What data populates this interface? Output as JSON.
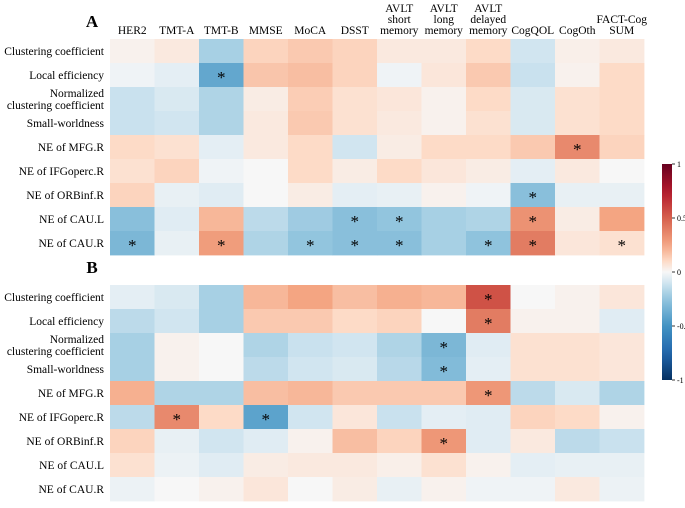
{
  "chart_data": {
    "type": "heatmap",
    "columns": [
      "HER2",
      "TMT-A",
      "TMT-B",
      "MMSE",
      "MoCA",
      "DSST",
      "AVLT short memory",
      "AVLT long memory",
      "AVLT delayed memory",
      "CogQOL",
      "CogOth",
      "FACT-Cog SUM"
    ],
    "column_labels": [
      [
        "HER2"
      ],
      [
        "TMT-A"
      ],
      [
        "TMT-B"
      ],
      [
        "MMSE"
      ],
      [
        "MoCA"
      ],
      [
        "DSST"
      ],
      [
        "AVLT",
        "short",
        "memory"
      ],
      [
        "AVLT",
        "long",
        "memory"
      ],
      [
        "AVLT",
        "delayed",
        "memory"
      ],
      [
        "CogQOL"
      ],
      [
        "CogOth"
      ],
      [
        "FACT-Cog",
        "SUM"
      ]
    ],
    "rows": [
      "Clustering coefficient",
      "Local efficiency",
      "Normalized clustering coefficient",
      "Small-worldness",
      "NE of MFG.R",
      "NE of IFGoperc.R",
      "NE of ORBinf.R",
      "NE of CAU.L",
      "NE of CAU.R"
    ],
    "row_labels": [
      [
        "Clustering coefficient"
      ],
      [
        "Local efficiency"
      ],
      [
        "Normalized",
        "clustering coefficient"
      ],
      [
        "Small-worldness"
      ],
      [
        "NE of MFG.R"
      ],
      [
        "NE of IFGoperc.R"
      ],
      [
        "NE of ORBinf.R"
      ],
      [
        "NE of CAU.L"
      ],
      [
        "NE of CAU.R"
      ]
    ],
    "significance_marker": "*",
    "colorbar": {
      "min": -1,
      "max": 1,
      "ticks": [
        1,
        0.5,
        0,
        -0.5,
        -1
      ],
      "tick_labels": [
        "1",
        "0.5",
        "0",
        "-0.5",
        "-1"
      ]
    },
    "panels": [
      {
        "label": "A",
        "values": [
          [
            0.02,
            0.05,
            -0.2,
            0.12,
            0.15,
            0.12,
            0.05,
            0.05,
            0.1,
            -0.1,
            0.03,
            0.05
          ],
          [
            -0.02,
            -0.05,
            -0.4,
            0.16,
            0.18,
            0.12,
            -0.02,
            0.06,
            0.15,
            -0.12,
            0.02,
            0.1
          ],
          [
            -0.12,
            -0.08,
            -0.18,
            0.04,
            0.14,
            0.08,
            0.06,
            0.02,
            0.1,
            -0.08,
            0.08,
            0.1
          ],
          [
            -0.12,
            -0.1,
            -0.18,
            0.05,
            0.15,
            0.08,
            0.05,
            0.02,
            0.08,
            -0.08,
            0.08,
            0.1
          ],
          [
            0.1,
            0.08,
            -0.05,
            0.05,
            0.1,
            -0.1,
            0.04,
            0.1,
            0.1,
            0.15,
            0.35,
            0.12
          ],
          [
            0.08,
            0.12,
            -0.02,
            0.0,
            0.1,
            0.04,
            0.1,
            0.06,
            0.04,
            -0.05,
            0.05,
            0.0
          ],
          [
            0.12,
            -0.04,
            -0.06,
            0.0,
            0.04,
            -0.05,
            -0.04,
            0.02,
            -0.02,
            -0.28,
            -0.04,
            -0.04
          ],
          [
            -0.28,
            -0.06,
            0.2,
            -0.15,
            -0.22,
            -0.28,
            -0.25,
            -0.2,
            -0.18,
            0.32,
            0.04,
            0.25
          ],
          [
            -0.32,
            -0.04,
            0.28,
            -0.18,
            -0.25,
            -0.28,
            -0.28,
            -0.2,
            -0.26,
            0.4,
            0.06,
            0.08
          ]
        ],
        "significant": [
          [
            false,
            false,
            false,
            false,
            false,
            false,
            false,
            false,
            false,
            false,
            false,
            false
          ],
          [
            false,
            false,
            true,
            false,
            false,
            false,
            false,
            false,
            false,
            false,
            false,
            false
          ],
          [
            false,
            false,
            false,
            false,
            false,
            false,
            false,
            false,
            false,
            false,
            false,
            false
          ],
          [
            false,
            false,
            false,
            false,
            false,
            false,
            false,
            false,
            false,
            false,
            false,
            false
          ],
          [
            false,
            false,
            false,
            false,
            false,
            false,
            false,
            false,
            false,
            false,
            true,
            false
          ],
          [
            false,
            false,
            false,
            false,
            false,
            false,
            false,
            false,
            false,
            false,
            false,
            false
          ],
          [
            false,
            false,
            false,
            false,
            false,
            false,
            false,
            false,
            false,
            true,
            false,
            false
          ],
          [
            false,
            false,
            false,
            false,
            false,
            true,
            true,
            false,
            false,
            true,
            false,
            false
          ],
          [
            true,
            false,
            true,
            false,
            true,
            true,
            true,
            false,
            true,
            true,
            false,
            true
          ]
        ]
      },
      {
        "label": "B",
        "values": [
          [
            -0.05,
            -0.08,
            -0.2,
            0.2,
            0.25,
            0.18,
            0.22,
            0.2,
            0.55,
            0.0,
            0.02,
            0.06
          ],
          [
            -0.15,
            -0.1,
            -0.2,
            0.15,
            0.15,
            0.1,
            0.12,
            0.0,
            0.4,
            0.02,
            0.02,
            -0.06
          ],
          [
            -0.2,
            0.02,
            0.0,
            -0.18,
            -0.12,
            -0.1,
            -0.18,
            -0.32,
            -0.06,
            0.08,
            0.08,
            0.06
          ],
          [
            -0.2,
            0.02,
            0.0,
            -0.15,
            -0.1,
            -0.08,
            -0.16,
            -0.3,
            -0.05,
            0.08,
            0.08,
            0.06
          ],
          [
            0.22,
            -0.18,
            -0.18,
            0.18,
            0.2,
            0.15,
            0.15,
            0.15,
            0.3,
            -0.15,
            -0.08,
            -0.18
          ],
          [
            -0.15,
            0.35,
            0.1,
            -0.42,
            -0.1,
            0.06,
            -0.12,
            -0.05,
            -0.06,
            0.12,
            0.1,
            0.02
          ],
          [
            0.12,
            -0.04,
            -0.1,
            -0.06,
            0.02,
            0.18,
            0.12,
            0.3,
            -0.06,
            0.05,
            -0.15,
            -0.12
          ],
          [
            0.08,
            -0.03,
            -0.06,
            0.04,
            0.05,
            0.05,
            0.03,
            0.08,
            0.02,
            -0.05,
            -0.04,
            -0.04
          ],
          [
            -0.03,
            0.0,
            0.02,
            0.06,
            0.0,
            0.04,
            -0.04,
            0.02,
            -0.02,
            -0.02,
            0.05,
            -0.03
          ]
        ],
        "significant": [
          [
            false,
            false,
            false,
            false,
            false,
            false,
            false,
            false,
            true,
            false,
            false,
            false
          ],
          [
            false,
            false,
            false,
            false,
            false,
            false,
            false,
            false,
            true,
            false,
            false,
            false
          ],
          [
            false,
            false,
            false,
            false,
            false,
            false,
            false,
            true,
            false,
            false,
            false,
            false
          ],
          [
            false,
            false,
            false,
            false,
            false,
            false,
            false,
            true,
            false,
            false,
            false,
            false
          ],
          [
            false,
            false,
            false,
            false,
            false,
            false,
            false,
            false,
            true,
            false,
            false,
            false
          ],
          [
            false,
            true,
            false,
            true,
            false,
            false,
            false,
            false,
            false,
            false,
            false,
            false
          ],
          [
            false,
            false,
            false,
            false,
            false,
            false,
            false,
            true,
            false,
            false,
            false,
            false
          ],
          [
            false,
            false,
            false,
            false,
            false,
            false,
            false,
            false,
            false,
            false,
            false,
            false
          ],
          [
            false,
            false,
            false,
            false,
            false,
            false,
            false,
            false,
            false,
            false,
            false,
            false
          ]
        ]
      }
    ]
  }
}
